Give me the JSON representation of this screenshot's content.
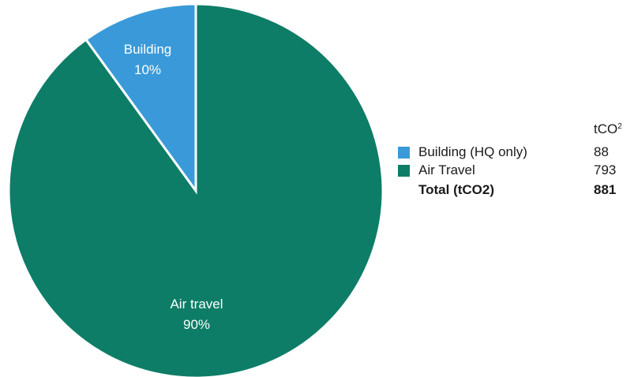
{
  "chart_data": {
    "type": "pie",
    "slices": [
      {
        "label": "Building",
        "percent_label": "10%",
        "value": 88,
        "legend_label": "Building (HQ only)",
        "color": "#3a9ad9"
      },
      {
        "label": "Air travel",
        "percent_label": "90%",
        "value": 793,
        "legend_label": "Air Travel",
        "color": "#0d7d67"
      }
    ],
    "legend": {
      "unit_base": "tCO",
      "unit_sup": "2",
      "total_label": "Total (tCO2)",
      "total_value": "881",
      "placement": "right"
    }
  }
}
